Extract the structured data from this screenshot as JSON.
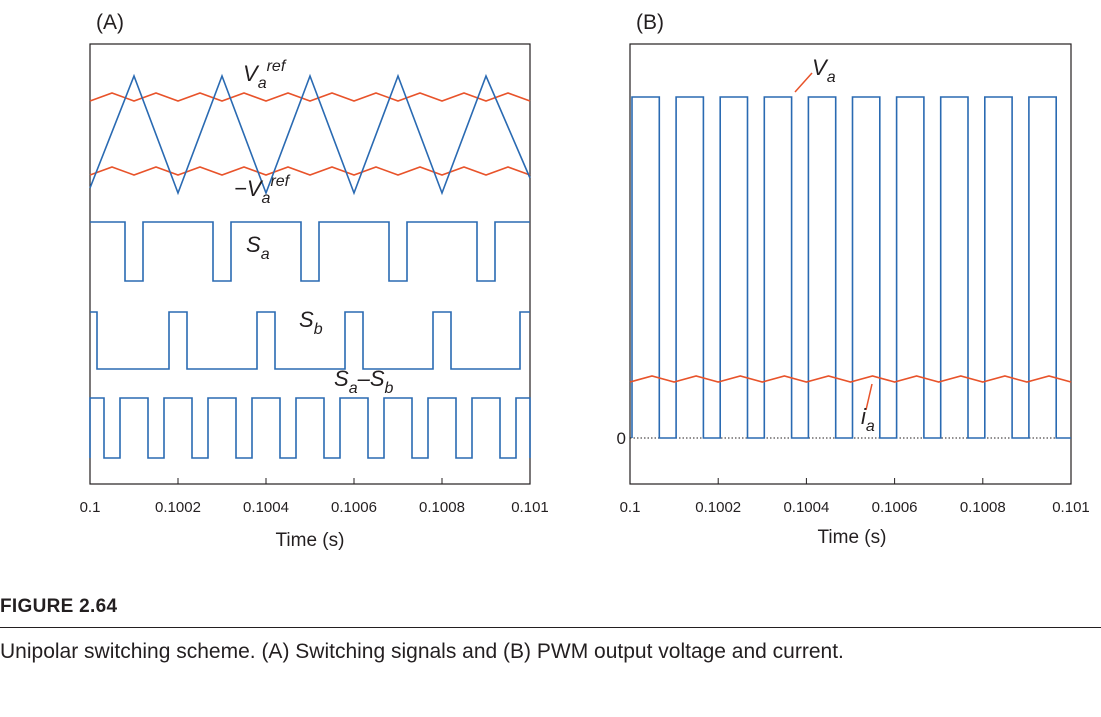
{
  "figure": {
    "caption_title": "FIGURE 2.64",
    "caption_text": "Unipolar switching scheme. (A) Switching signals and (B) PWM output voltage and current."
  },
  "colors": {
    "blue": "#2a6ab2",
    "orange": "#e8532a",
    "axis": "#231f20"
  },
  "chart_data": [
    {
      "type": "line",
      "panel_label": "(A)",
      "xlabel": "Time (s)",
      "xlim": [
        0.1,
        0.101
      ],
      "xticks": [
        "0.1",
        "0.1002",
        "0.1004",
        "0.1006",
        "0.1008",
        "0.101"
      ],
      "carrier_frequency_hz": 5000,
      "series": [
        {
          "name": "V_a^ref",
          "label_main": "V",
          "label_sub": "a",
          "label_sup": "ref",
          "kind": "reference-ripple"
        },
        {
          "name": "-V_a^ref",
          "label_main": "−V",
          "label_sub": "a",
          "label_sup": "ref",
          "kind": "reference-ripple"
        },
        {
          "name": "carrier",
          "kind": "triangle"
        },
        {
          "name": "S_a",
          "label_main": "S",
          "label_sub": "a",
          "kind": "pulse"
        },
        {
          "name": "S_b",
          "label_main": "S",
          "label_sub": "b",
          "kind": "pulse"
        },
        {
          "name": "S_a-S_b",
          "label_main": "S",
          "label_sub": "a",
          "label_mid": "–S",
          "label_sub2": "b",
          "kind": "pulse"
        }
      ]
    },
    {
      "type": "line",
      "panel_label": "(B)",
      "xlabel": "Time (s)",
      "xlim": [
        0.1,
        0.101
      ],
      "xticks": [
        "0.1",
        "0.1002",
        "0.1004",
        "0.1006",
        "0.1008",
        "0.101"
      ],
      "yticks": [
        "0"
      ],
      "series": [
        {
          "name": "V_a",
          "label_main": "V",
          "label_sub": "a",
          "kind": "pwm-voltage"
        },
        {
          "name": "i_a",
          "label_main": "i",
          "label_sub": "a",
          "kind": "current-ripple"
        }
      ]
    }
  ]
}
